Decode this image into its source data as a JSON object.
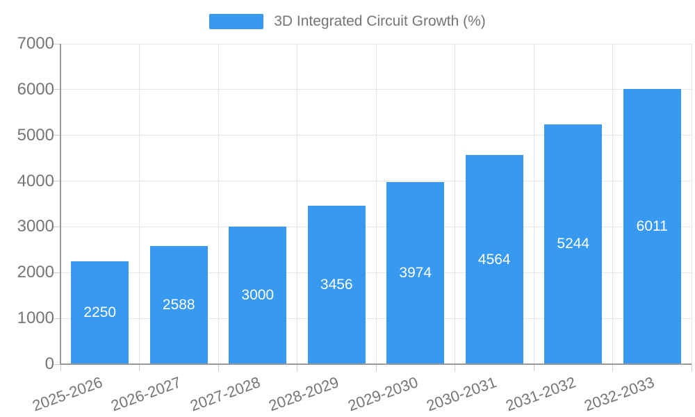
{
  "chart_data": {
    "type": "bar",
    "title": "3D Integrated Circuit Growth (%)",
    "legend_position": "top",
    "categories": [
      "2025-2026",
      "2026-2027",
      "2027-2028",
      "2028-2029",
      "2029-2030",
      "2030-2031",
      "2031-2032",
      "2032-2033"
    ],
    "values": [
      2250,
      2588,
      3000,
      3456,
      3974,
      4564,
      5244,
      6011
    ],
    "xlabel": "",
    "ylabel": "",
    "ylim": [
      0,
      7000
    ],
    "yticks": [
      0,
      1000,
      2000,
      3000,
      4000,
      5000,
      6000,
      7000
    ],
    "grid": true,
    "x_label_rotation_deg": -20,
    "bar_value_labels_visible": true,
    "colors": {
      "bar": "#3899f0",
      "grid": "#e5e5e5",
      "axis": "#999999",
      "tick": "#cccccc",
      "text": "#757575",
      "bar_label": "#ffffff",
      "background": "#ffffff"
    }
  }
}
